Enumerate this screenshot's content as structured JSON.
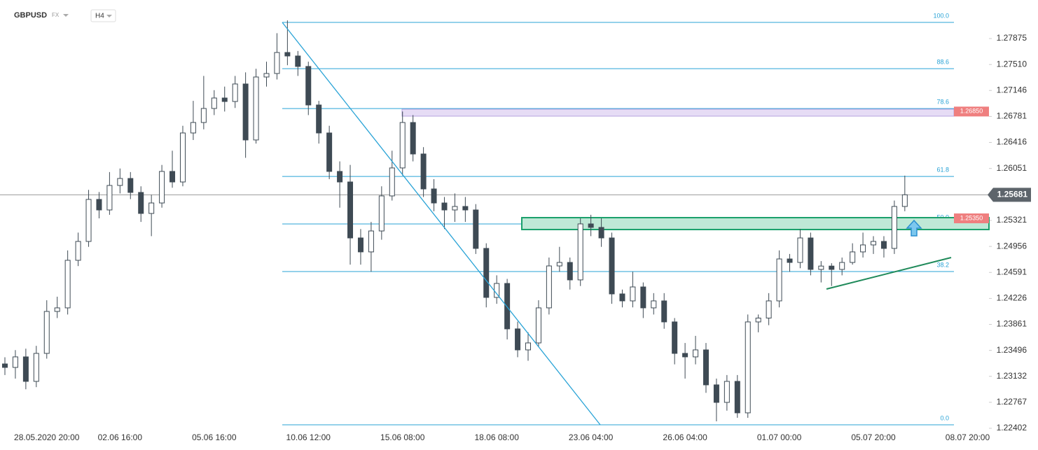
{
  "header": {
    "symbol": "GBPUSD",
    "market": "FX",
    "interval": "H4"
  },
  "chart_data": {
    "type": "candlestick",
    "categories": [
      null,
      null,
      null,
      null,
      "28.05.2020  20:00",
      null,
      null,
      null,
      null,
      null,
      null,
      "02.06  16:00",
      null,
      null,
      null,
      null,
      null,
      null,
      null,
      null,
      "05.06  16:00",
      null,
      null,
      null,
      null,
      null,
      null,
      null,
      null,
      "10.06  12:00",
      null,
      null,
      null,
      null,
      null,
      null,
      null,
      null,
      "15.06  08:00",
      null,
      null,
      null,
      null,
      null,
      null,
      null,
      null,
      "18.06  08:00",
      null,
      null,
      null,
      null,
      null,
      null,
      null,
      null,
      "23.06  04:00",
      null,
      null,
      null,
      null,
      null,
      null,
      null,
      null,
      "26.06  04:00",
      null,
      null,
      null,
      null,
      null,
      null,
      null,
      null,
      "01.07  00:00",
      null,
      null,
      null,
      null,
      null,
      null,
      null,
      null,
      "05.07  20:00",
      null,
      null,
      null,
      null,
      null,
      null,
      null,
      null,
      "08.07  20:00"
    ],
    "open": [
      1.23306,
      1.23257,
      1.23405,
      1.23061,
      1.23454,
      1.24043,
      1.24093,
      1.24761,
      1.25026,
      1.25616,
      1.25468,
      1.25812,
      1.2591,
      1.25714,
      1.25419,
      1.25566,
      1.26009,
      1.25861,
      1.26549,
      1.26696,
      1.26893,
      1.2704,
      1.26991,
      1.27237,
      1.26451,
      1.27335,
      1.27384,
      1.27679,
      1.2763,
      1.27483,
      1.26942,
      1.26549,
      1.26009,
      1.25861,
      1.25075,
      1.24879,
      1.25173,
      1.25665,
      1.26058,
      1.26696,
      1.26254,
      1.25763,
      1.25566,
      1.25468,
      1.25517,
      1.25468,
      1.24928,
      1.2424,
      1.24436,
      1.23798,
      1.23503,
      1.23601,
      1.24093,
      1.24682,
      1.24731,
      1.24486,
      1.25272,
      1.25223,
      1.25075,
      1.24289,
      1.24191,
      1.24387,
      1.24093,
      1.24191,
      1.23896,
      1.23454,
      1.23405,
      1.23503,
      1.23012,
      1.22766,
      1.23061,
      1.22619,
      1.23896,
      1.2395,
      1.24191,
      1.2478,
      1.24731,
      1.25075,
      1.24633,
      1.2468,
      1.24633,
      1.24731,
      1.24879,
      1.24977,
      1.25026,
      1.24928,
      1.25517,
      null,
      null,
      null,
      null,
      null,
      null
    ],
    "high": [
      1.234,
      1.235,
      1.2352,
      1.2356,
      1.242,
      1.2425,
      1.249,
      1.2515,
      1.2575,
      1.2572,
      1.26,
      1.2605,
      1.26,
      1.258,
      1.2568,
      1.261,
      1.263,
      1.2665,
      1.27,
      1.2735,
      1.2715,
      1.272,
      1.2735,
      1.274,
      1.2745,
      1.2755,
      1.2795,
      1.2813,
      1.277,
      1.2755,
      1.27,
      1.2665,
      1.2615,
      1.261,
      1.252,
      1.253,
      1.258,
      1.263,
      1.2685,
      1.268,
      1.2635,
      1.259,
      1.2565,
      1.257,
      1.2565,
      1.2555,
      1.25,
      1.2455,
      1.245,
      1.239,
      1.2375,
      1.242,
      1.248,
      1.2495,
      1.248,
      1.2535,
      1.254,
      1.2535,
      1.2515,
      1.2435,
      1.246,
      1.2445,
      1.243,
      1.243,
      1.2395,
      1.236,
      1.237,
      1.236,
      1.231,
      1.2315,
      1.2315,
      1.24,
      1.24,
      1.243,
      1.249,
      1.2485,
      1.252,
      1.2515,
      1.2475,
      1.2472,
      1.248,
      1.25,
      1.2515,
      1.251,
      1.251,
      1.256,
      1.2595,
      null,
      null,
      null,
      null,
      null,
      null
    ],
    "low": [
      1.2315,
      1.231,
      1.2295,
      1.2298,
      1.2338,
      1.2395,
      1.24,
      1.2468,
      1.2495,
      1.2535,
      1.254,
      1.257,
      1.2562,
      1.253,
      1.251,
      1.255,
      1.2578,
      1.258,
      1.2645,
      1.266,
      1.268,
      1.2685,
      1.269,
      1.262,
      1.264,
      1.272,
      1.273,
      1.275,
      1.2735,
      1.268,
      1.264,
      1.259,
      1.255,
      1.247,
      1.247,
      1.246,
      1.2505,
      1.256,
      1.2595,
      1.2615,
      1.2565,
      1.2545,
      1.252,
      1.253,
      1.253,
      1.2485,
      1.241,
      1.2415,
      1.2365,
      1.234,
      1.2335,
      1.2355,
      1.24,
      1.246,
      1.2435,
      1.244,
      1.251,
      1.2495,
      1.2415,
      1.241,
      1.241,
      1.2395,
      1.24,
      1.238,
      1.233,
      1.231,
      1.233,
      1.229,
      1.225,
      1.2265,
      1.2255,
      1.2255,
      1.2375,
      1.2385,
      1.241,
      1.246,
      1.2465,
      1.2455,
      1.2445,
      1.244,
      1.2455,
      1.247,
      1.248,
      1.2485,
      1.248,
      1.2485,
      1.2545,
      null,
      null,
      null,
      null,
      null,
      null
    ],
    "close": [
      1.23257,
      1.23405,
      1.23061,
      1.23454,
      1.24043,
      1.24093,
      1.24761,
      1.25026,
      1.25616,
      1.25468,
      1.25812,
      1.2591,
      1.25714,
      1.25419,
      1.25566,
      1.26009,
      1.25861,
      1.26549,
      1.26696,
      1.26893,
      1.2704,
      1.26991,
      1.27237,
      1.26451,
      1.27335,
      1.27384,
      1.27679,
      1.2763,
      1.27483,
      1.26942,
      1.26549,
      1.26009,
      1.25861,
      1.25075,
      1.24879,
      1.25173,
      1.25665,
      1.26058,
      1.26696,
      1.26254,
      1.25763,
      1.25566,
      1.25468,
      1.25517,
      1.25468,
      1.24928,
      1.2424,
      1.24436,
      1.23798,
      1.23503,
      1.23601,
      1.24093,
      1.24682,
      1.24731,
      1.24486,
      1.25272,
      1.25223,
      1.25075,
      1.24289,
      1.24191,
      1.24387,
      1.24093,
      1.24191,
      1.23896,
      1.23454,
      1.23405,
      1.23503,
      1.23012,
      1.22766,
      1.23061,
      1.22619,
      1.23896,
      1.2395,
      1.24191,
      1.2478,
      1.24731,
      1.25075,
      1.24633,
      1.2468,
      1.24633,
      1.24731,
      1.24879,
      1.24977,
      1.25026,
      1.24928,
      1.25517,
      1.25681,
      null,
      null,
      null,
      null,
      null,
      null
    ],
    "up_color": "#ffffff",
    "down_color": "#3e4a54",
    "outline_color": "#3e4a54",
    "ylim": [
      1.22402,
      1.28416
    ],
    "yticks": [
      1.27875,
      {
        "value": 1.2751,
        "label": "1.27510"
      },
      1.27146,
      1.26781,
      1.26416,
      1.26051,
      1.25321,
      1.24956,
      1.24591,
      1.24226,
      1.23861,
      1.23496,
      1.23132,
      1.22767,
      1.22402
    ],
    "fib_levels": [
      {
        "label": "100.0",
        "value": 1.28101
      },
      {
        "label": "88.6",
        "value": 1.27452
      },
      {
        "label": "78.6",
        "value": 1.26892
      },
      {
        "label": "61.8",
        "value": 1.25939
      },
      {
        "label": "50.0",
        "value": 1.25271
      },
      {
        "label": "38.2",
        "value": 1.24603
      },
      {
        "label": "0.0",
        "value": 1.22451
      }
    ],
    "fib_color": "#29a3d6",
    "zones": [
      {
        "value": 1.2685,
        "value_label": "1.26850",
        "high": 1.26883,
        "low": 1.26785,
        "color": "#e6dcf5",
        "border": "#b7a3e0"
      },
      {
        "value": 1.2535,
        "value_label": "1.25350",
        "high": 1.2536,
        "low": 1.25193,
        "color": "#bfe8d6",
        "border": "#1aa06b"
      }
    ],
    "current_price": {
      "value": 1.25681,
      "label": "1.25681"
    }
  }
}
